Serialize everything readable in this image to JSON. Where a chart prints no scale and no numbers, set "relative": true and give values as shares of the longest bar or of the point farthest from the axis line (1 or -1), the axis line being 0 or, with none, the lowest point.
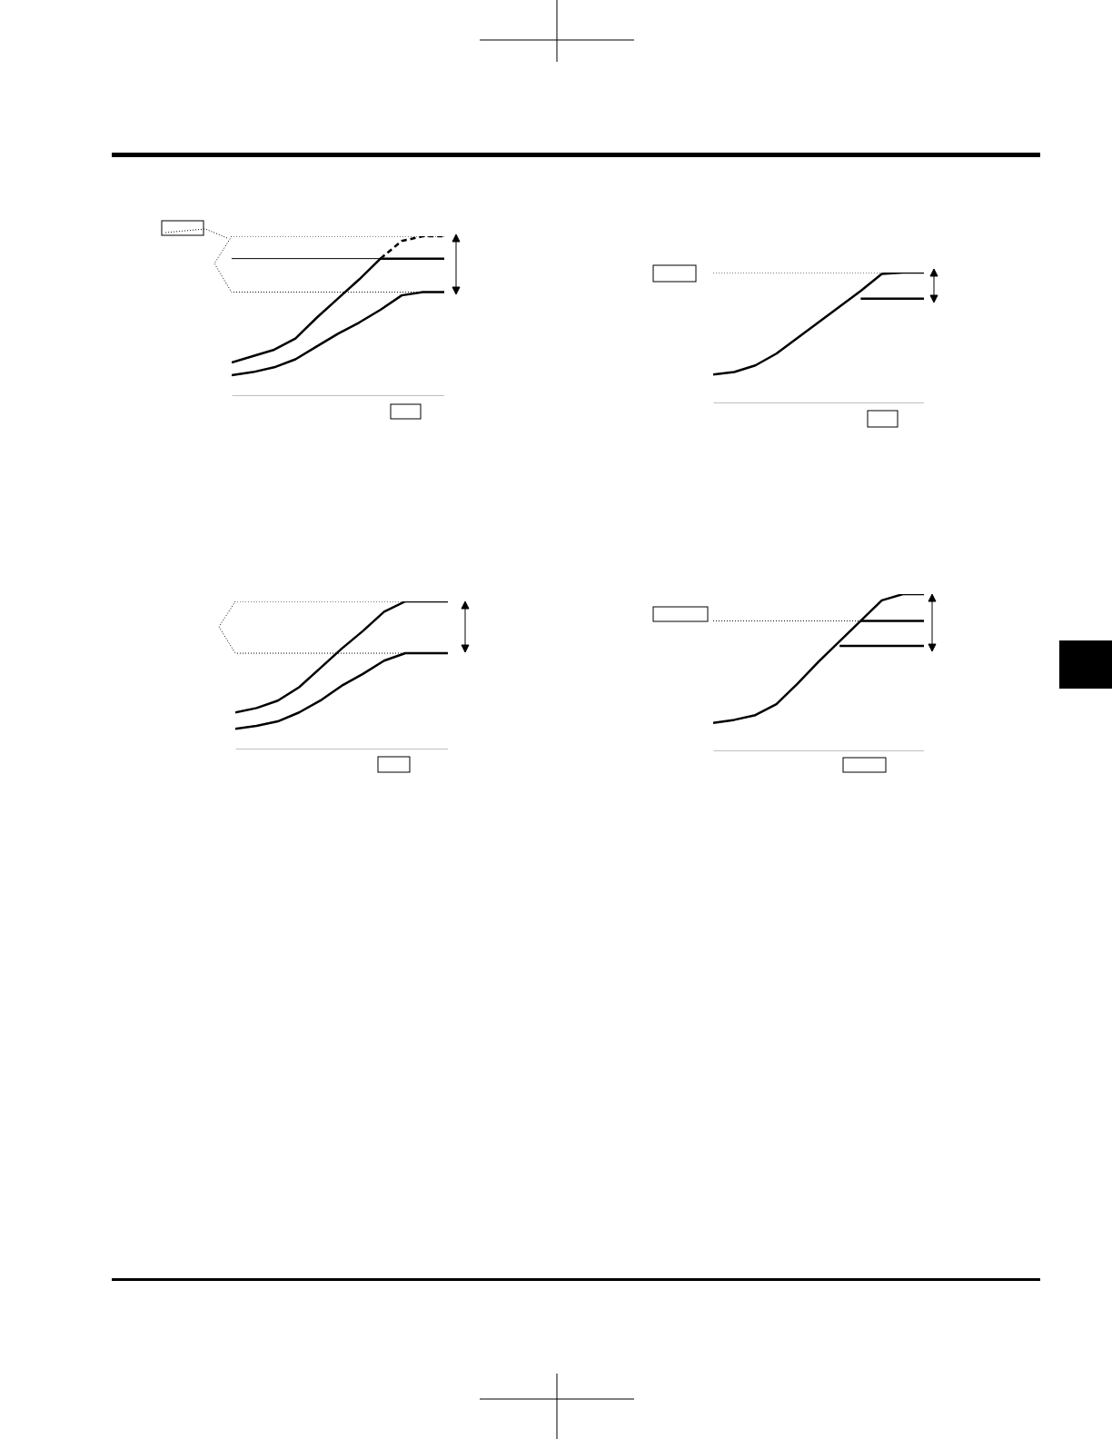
{
  "chart_data": [
    {
      "type": "line",
      "relative": true,
      "categories": [
        null,
        null,
        null,
        null,
        null,
        null,
        null,
        null,
        null,
        null,
        null
      ],
      "line_style": "solid",
      "marker": "none",
      "grid": false,
      "series": [
        {
          "color": "#000000",
          "values": [
            0.21,
            0.25,
            0.29,
            0.36,
            0.49,
            0.61,
            0.73,
            0.86,
            0.86,
            0.86,
            0.86
          ]
        },
        {
          "color": "#000000",
          "line_style": "dashed",
          "values": [
            null,
            null,
            null,
            null,
            null,
            null,
            null,
            0.86,
            0.97,
            1.0,
            1.0
          ]
        },
        {
          "color": "#000000",
          "values": [
            0.13,
            0.15,
            0.18,
            0.23,
            0.31,
            0.39,
            0.46,
            0.54,
            0.63,
            0.65,
            0.65
          ]
        }
      ],
      "ref_lines": [
        {
          "axis": "y",
          "value": 1.0,
          "line_style": "dotted"
        },
        {
          "axis": "y",
          "value": 0.86,
          "line_style": "solid"
        },
        {
          "axis": "y",
          "value": 0.65,
          "line_style": "dotted"
        }
      ]
    },
    {
      "type": "line",
      "relative": true,
      "categories": [
        null,
        null,
        null,
        null,
        null,
        null,
        null,
        null,
        null,
        null,
        null
      ],
      "line_style": "solid",
      "marker": "none",
      "grid": false,
      "series": [
        {
          "color": "#000000",
          "values": [
            0.22,
            0.24,
            0.29,
            0.38,
            0.5,
            0.62,
            0.74,
            0.86,
            0.99,
            1.0,
            1.0
          ]
        },
        {
          "color": "#000000",
          "values": [
            null,
            null,
            null,
            null,
            null,
            null,
            null,
            0.8,
            0.8,
            0.8,
            0.8
          ]
        }
      ],
      "ref_lines": [
        {
          "axis": "y",
          "value": 1.0,
          "line_style": "dotted"
        }
      ]
    },
    {
      "type": "line",
      "relative": true,
      "categories": [
        null,
        null,
        null,
        null,
        null,
        null,
        null,
        null,
        null,
        null,
        null
      ],
      "line_style": "solid",
      "marker": "none",
      "grid": false,
      "series": [
        {
          "color": "#000000",
          "values": [
            0.25,
            0.28,
            0.33,
            0.42,
            0.55,
            0.68,
            0.8,
            0.93,
            1.0,
            1.0,
            1.0
          ]
        },
        {
          "color": "#000000",
          "values": [
            0.14,
            0.16,
            0.19,
            0.25,
            0.33,
            0.43,
            0.51,
            0.6,
            0.65,
            0.65,
            0.65
          ]
        }
      ],
      "ref_lines": [
        {
          "axis": "y",
          "value": 1.0,
          "line_style": "dotted"
        },
        {
          "axis": "y",
          "value": 0.65,
          "line_style": "dotted"
        }
      ]
    },
    {
      "type": "line",
      "relative": true,
      "categories": [
        null,
        null,
        null,
        null,
        null,
        null,
        null,
        null,
        null,
        null,
        null
      ],
      "line_style": "solid",
      "marker": "none",
      "grid": false,
      "series": [
        {
          "color": "#000000",
          "values": [
            0.18,
            0.2,
            0.23,
            0.3,
            0.43,
            0.57,
            0.7,
            0.83,
            0.96,
            1.0,
            1.0
          ]
        },
        {
          "color": "#000000",
          "values": [
            null,
            null,
            null,
            null,
            null,
            null,
            null,
            0.83,
            0.83,
            0.83,
            0.83
          ]
        },
        {
          "color": "#000000",
          "values": [
            null,
            null,
            null,
            null,
            null,
            null,
            0.67,
            0.67,
            0.67,
            0.67,
            0.67
          ]
        }
      ],
      "ref_lines": [
        {
          "axis": "y",
          "value": 0.83,
          "line_style": "dotted"
        }
      ]
    }
  ]
}
